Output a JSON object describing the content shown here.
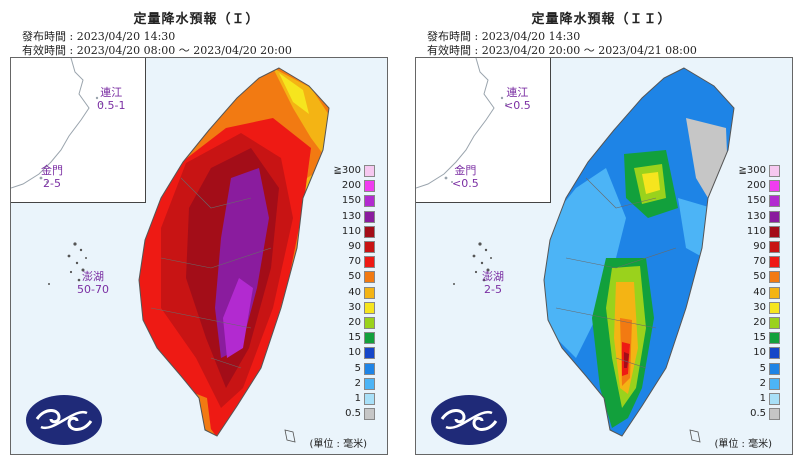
{
  "panels": [
    {
      "title": "定量降水預報（Ｉ）",
      "issue_time": "發布時間 : 2023/04/20 14:30",
      "valid_time": "有效時間 : 2023/04/20 08:00 ～ 2023/04/20 20:00",
      "inset_labels": [
        {
          "name": "連江",
          "value": "0.5-1"
        },
        {
          "name": "金門",
          "value": "2-5"
        }
      ],
      "penghu_label": {
        "name": "澎湖",
        "value": "50-70"
      },
      "unit": "(單位 : 毫米)",
      "dominant_levels": [
        "130",
        "110",
        "90",
        "70",
        "50"
      ]
    },
    {
      "title": "定量降水預報（ＩＩ）",
      "issue_time": "發布時間 : 2023/04/20 14:30",
      "valid_time": "有效時間 : 2023/04/20 20:00 ～ 2023/04/21 08:00",
      "inset_labels": [
        {
          "name": "連江",
          "value": "<0.5"
        },
        {
          "name": "金門",
          "value": "<0.5"
        }
      ],
      "penghu_label": {
        "name": "澎湖",
        "value": "2-5"
      },
      "unit": "(單位 : 毫米)",
      "dominant_levels": [
        "10",
        "15",
        "5",
        "30",
        "70"
      ]
    }
  ],
  "legend": {
    "labels": [
      "≧300",
      "200",
      "150",
      "130",
      "110",
      "90",
      "70",
      "50",
      "40",
      "30",
      "20",
      "15",
      "10",
      "5",
      "2",
      "1",
      "0.5"
    ],
    "colors": [
      "#f6c8f0",
      "#f03cf0",
      "#b22ad0",
      "#8a1c9e",
      "#a30d18",
      "#c81414",
      "#ee1a14",
      "#f27a12",
      "#f4b414",
      "#f6e51e",
      "#9ad21c",
      "#12a03c",
      "#1446c8",
      "#1e84e6",
      "#4cb4f6",
      "#a8e0f8",
      "#c6c6c6"
    ]
  },
  "icons": {
    "logo": "cwb-logo-icon"
  },
  "colors": {
    "sea": "#eaf4fb",
    "land_none": "#ffffff",
    "label_purple": "#7b2fa3"
  }
}
